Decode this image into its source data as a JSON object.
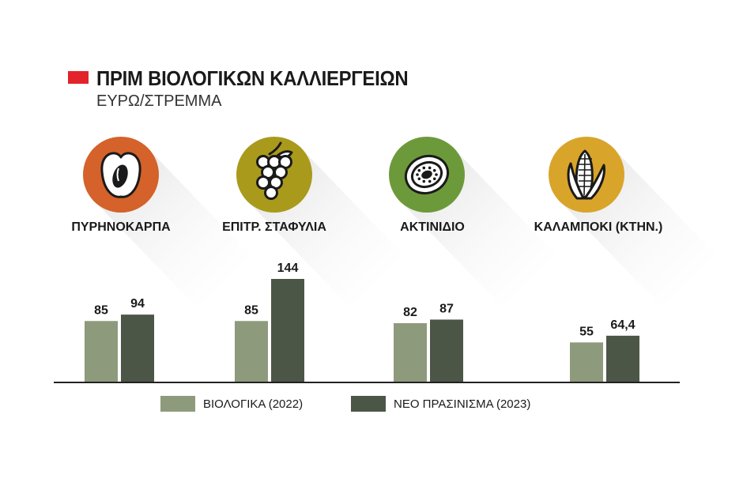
{
  "header": {
    "title": "ΠΡΙΜ ΒΙΟΛΟΓΙΚΩΝ ΚΑΛΛΙΕΡΓΕΙΩΝ",
    "subtitle": "ΕΥΡΩ/ΣΤΡΕΜΜΑ",
    "marker_color": "#e2232a"
  },
  "chart_data": {
    "type": "bar",
    "title": "ΠΡΙΜ ΒΙΟΛΟΓΙΚΩΝ ΚΑΛΛΙΕΡΓΕΙΩΝ",
    "subtitle": "ΕΥΡΩ/ΣΤΡΕΜΜΑ",
    "xlabel": "",
    "ylabel": "",
    "ylim": [
      0,
      144
    ],
    "categories": [
      "ΠΥΡΗΝΟΚΑΡΠΑ",
      "ΕΠΙΤΡ. ΣΤΑΦΥΛΙΑ",
      "ΑΚΤΙΝΙΔΙΟ",
      "ΚΑΛΑΜΠΟΚΙ (ΚΤΗΝ.)"
    ],
    "category_icons": [
      "stone-fruit-icon",
      "grapes-icon",
      "kiwi-icon",
      "corn-icon"
    ],
    "category_icon_colors": [
      "#d4622a",
      "#a99a1c",
      "#6c9a3a",
      "#d9a42a"
    ],
    "series": [
      {
        "name": "ΒΙΟΛΟΓΙΚΑ (2022)",
        "color": "#8e9a7c",
        "values": [
          85,
          85,
          82,
          55
        ],
        "labels": [
          "85",
          "85",
          "82",
          "55"
        ]
      },
      {
        "name": "ΝΕΟ ΠΡΑΣΙΝΙΣΜΑ (2023)",
        "color": "#4c5646",
        "values": [
          94,
          144,
          87,
          64.4
        ],
        "labels": [
          "94",
          "144",
          "87",
          "64,4"
        ]
      }
    ],
    "grid": false,
    "legend_position": "bottom"
  }
}
